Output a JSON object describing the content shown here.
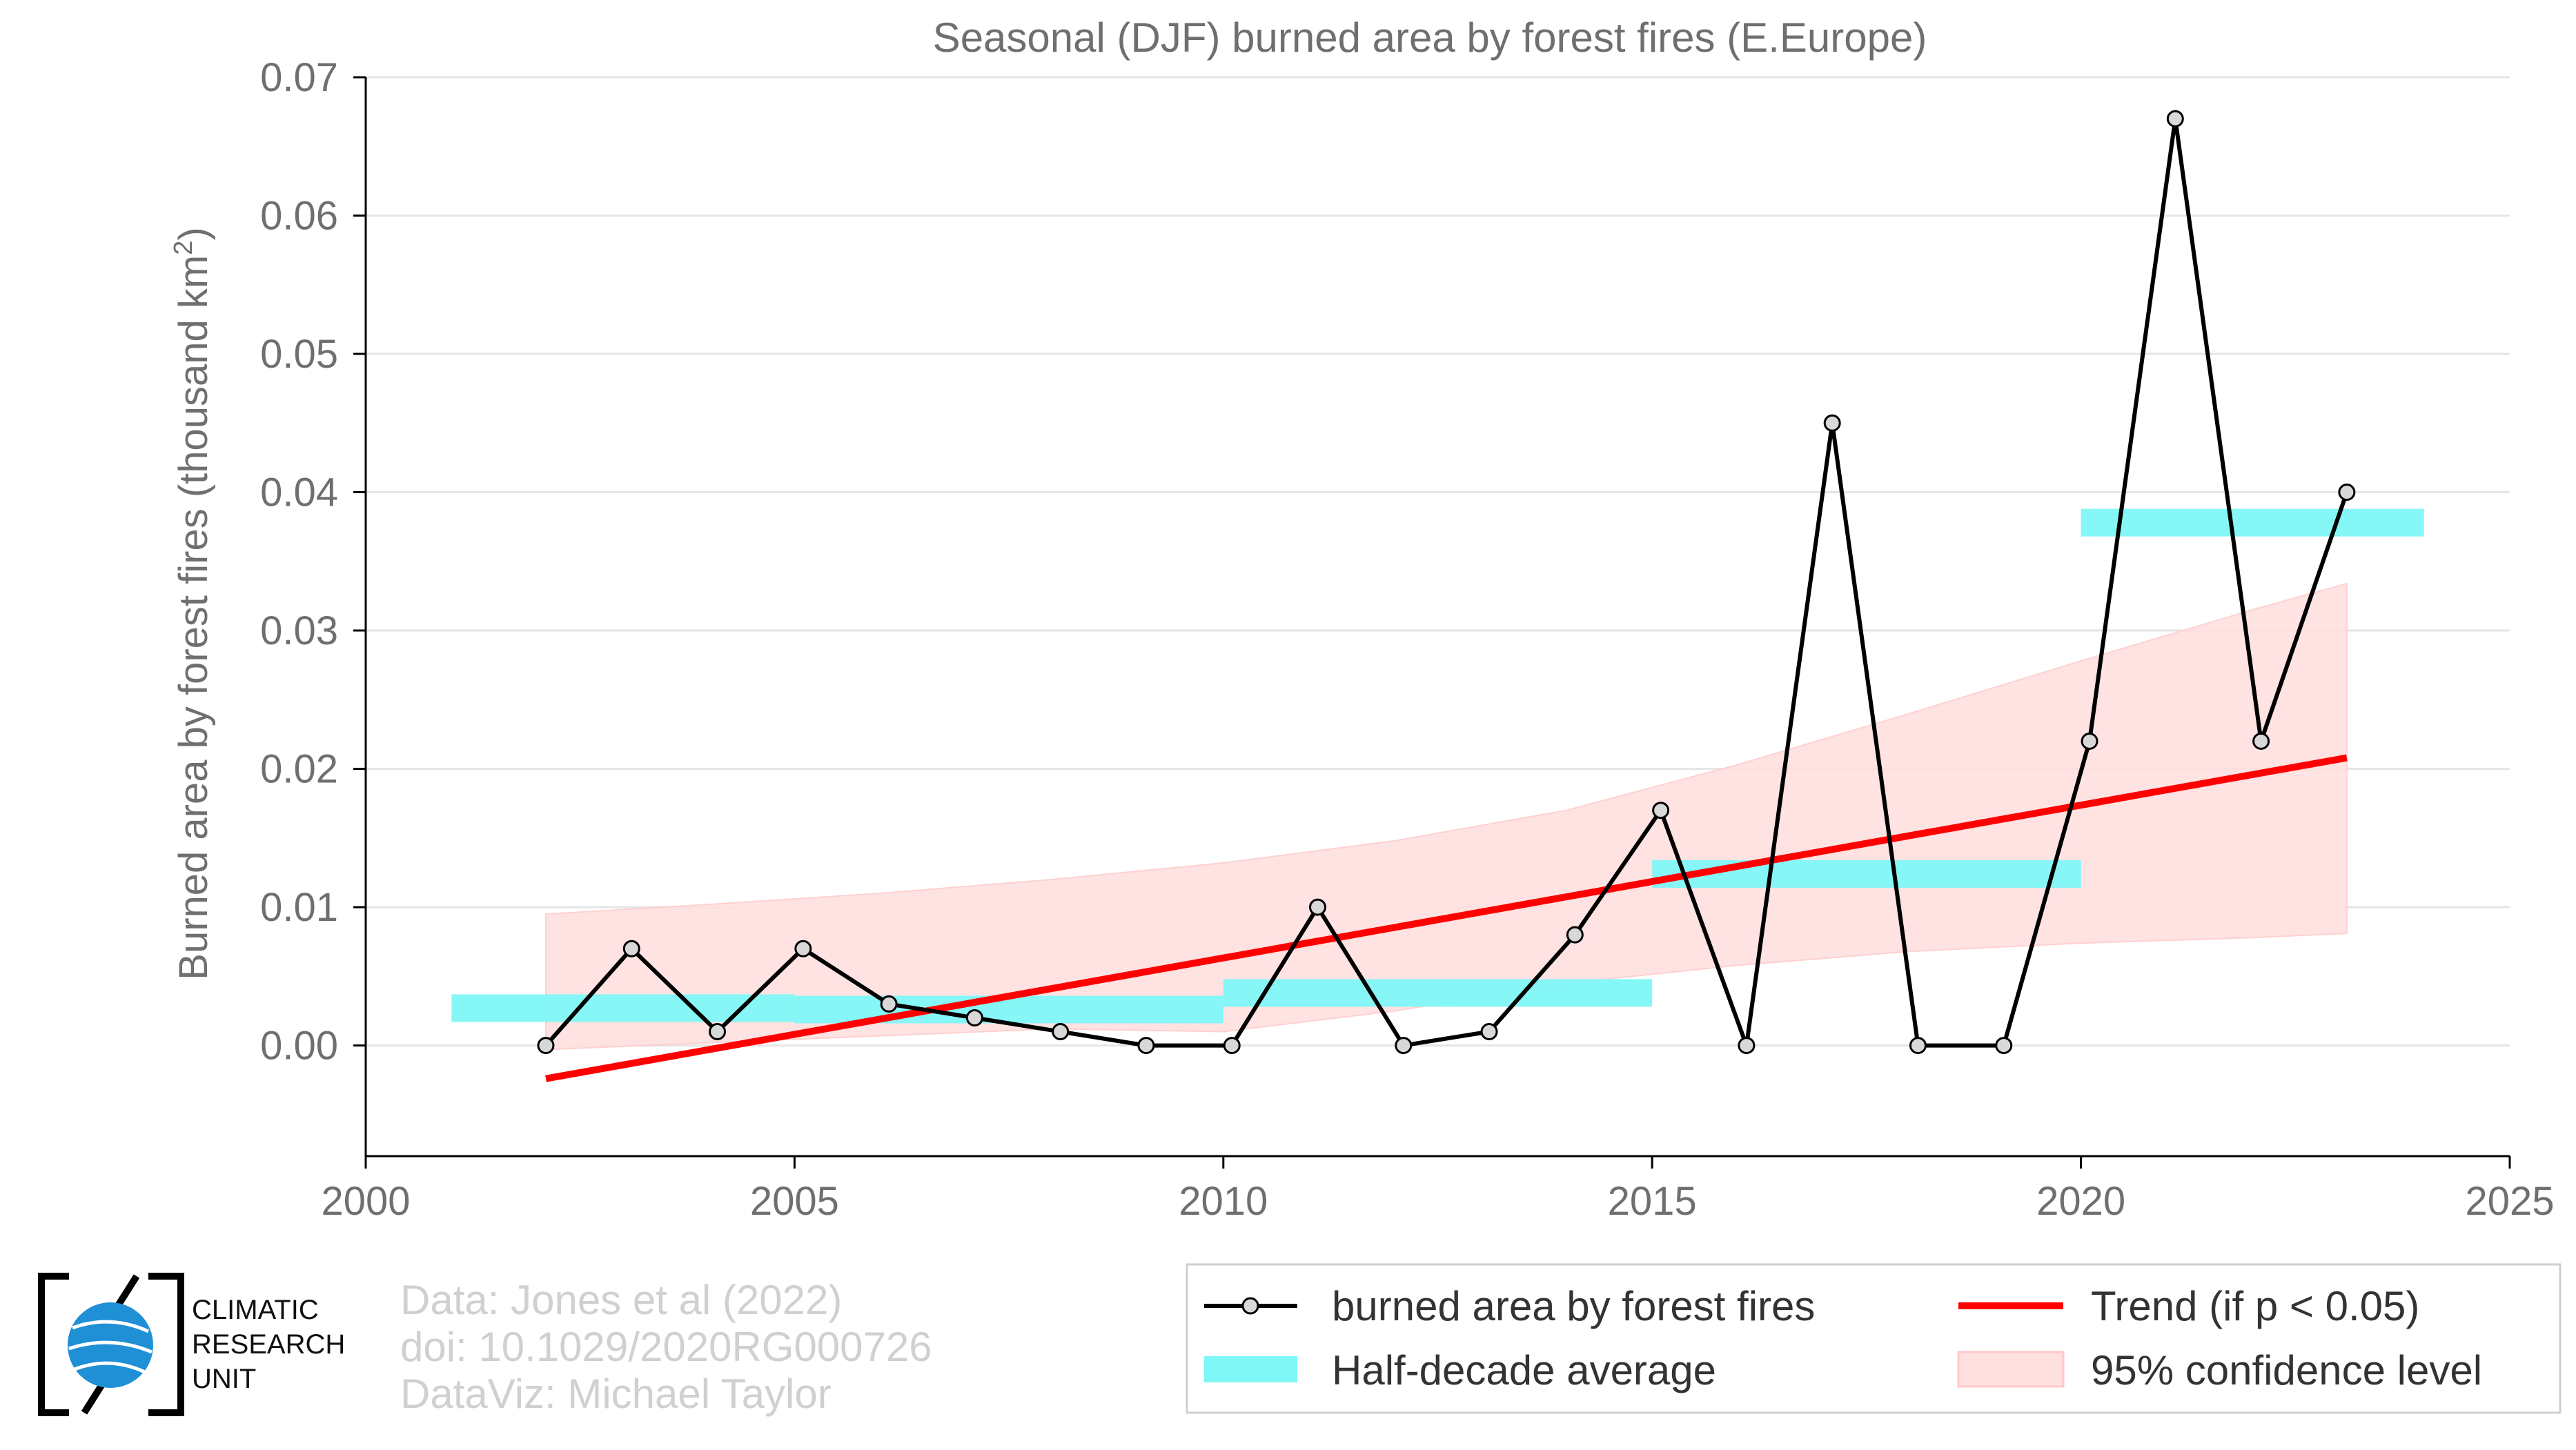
{
  "chart_data": {
    "type": "line",
    "title": "Seasonal (DJF) burned area by forest fires (E.Europe)",
    "ylabel_main": "Burned area by forest fires (thousand km",
    "ylabel_sup": "2",
    "ylabel_end": ")",
    "xlim": [
      2000,
      2025
    ],
    "ylim": [
      -0.008,
      0.07
    ],
    "x_ticks": [
      2000,
      2005,
      2010,
      2015,
      2020,
      2025
    ],
    "x_tick_labels": [
      "2000",
      "2005",
      "2010",
      "2015",
      "2020",
      "2025"
    ],
    "y_ticks": [
      0.0,
      0.01,
      0.02,
      0.03,
      0.04,
      0.05,
      0.06,
      0.07
    ],
    "y_tick_labels": [
      "0.00",
      "0.01",
      "0.02",
      "0.03",
      "0.04",
      "0.05",
      "0.06",
      "0.07"
    ],
    "grid": "horizontal",
    "series": [
      {
        "name": "burned area by forest fires",
        "color": "#000000",
        "x": [
          2002.1,
          2003.1,
          2004.1,
          2005.1,
          2006.1,
          2007.1,
          2008.1,
          2009.1,
          2010.1,
          2011.1,
          2012.1,
          2013.1,
          2014.1,
          2015.1,
          2016.1,
          2017.1,
          2018.1,
          2019.1,
          2020.1,
          2021.1,
          2022.1,
          2023.1
        ],
        "y": [
          0.0,
          0.007,
          0.001,
          0.007,
          0.003,
          0.002,
          0.001,
          0.0,
          0.0,
          0.01,
          0.0,
          0.001,
          0.008,
          0.017,
          0.0,
          0.045,
          0.0,
          0.0,
          0.022,
          0.067,
          0.022,
          0.04
        ]
      }
    ],
    "half_decade_average": {
      "name": "Half-decade average",
      "color": "#7ff7f7",
      "segments": [
        {
          "x0": 2001,
          "x1": 2005,
          "y": 0.0027
        },
        {
          "x0": 2005,
          "x1": 2010,
          "y": 0.0026
        },
        {
          "x0": 2010,
          "x1": 2015,
          "y": 0.0038
        },
        {
          "x0": 2015,
          "x1": 2020,
          "y": 0.0124
        },
        {
          "x0": 2020,
          "x1": 2024,
          "y": 0.0378
        }
      ]
    },
    "trend": {
      "name": "Trend (if p < 0.05)",
      "color": "#ff0000",
      "x": [
        2002.1,
        2023.1
      ],
      "y": [
        -0.0024,
        0.0208
      ]
    },
    "confidence": {
      "name": "95% confidence level",
      "color": "#ffe0e0",
      "x": [
        2002.1,
        2004,
        2006,
        2008,
        2010,
        2012,
        2014,
        2016,
        2018,
        2020,
        2022,
        2023.1
      ],
      "upper": [
        0.0095,
        0.0102,
        0.011,
        0.012,
        0.0132,
        0.0148,
        0.017,
        0.0203,
        0.024,
        0.0278,
        0.0315,
        0.0334
      ],
      "lower": [
        -0.0003,
        0.0002,
        0.0007,
        0.0012,
        0.001,
        0.0025,
        0.0045,
        0.0058,
        0.0068,
        0.0074,
        0.0078,
        0.0081
      ]
    },
    "legend_position": "bottom-right"
  },
  "credits": {
    "line1": "Data: Jones et al (2022)",
    "line2": "doi: 10.1029/2020RG000726",
    "line3": "DataViz: Michael Taylor"
  },
  "logo": {
    "line1": "CLIMATIC",
    "line2": "RESEARCH",
    "line3": "UNIT"
  },
  "colors": {
    "axis": "#000000",
    "grid": "#e5e5e5",
    "marker_fill": "#d8d8d8"
  }
}
